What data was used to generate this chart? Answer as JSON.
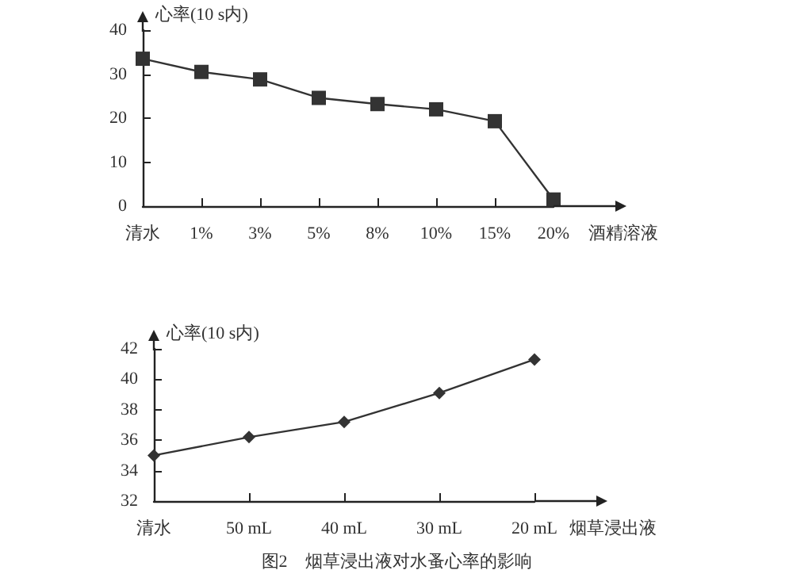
{
  "chart_data": [
    {
      "type": "line",
      "ylabel": "心率(10 s内)",
      "xlabel": "酒精溶液",
      "categories": [
        "清水",
        "1%",
        "3%",
        "5%",
        "8%",
        "10%",
        "15%",
        "20%"
      ],
      "series": [
        {
          "color": "#333333",
          "values": [
            33.5,
            30.5,
            28.8,
            24.6,
            23.2,
            22,
            19.3,
            1.5
          ]
        }
      ],
      "ylim": [
        0,
        40
      ],
      "yticks": [
        0,
        10,
        20,
        30,
        40
      ],
      "grid": false,
      "marker": "square",
      "line_style": "solid"
    },
    {
      "type": "line",
      "ylabel": "心率(10 s内)",
      "xlabel": "烟草浸出液",
      "categories": [
        "清水",
        "50 mL",
        "40 mL",
        "30 mL",
        "20 mL"
      ],
      "series": [
        {
          "color": "#333333",
          "values": [
            35,
            36.2,
            37.2,
            39.1,
            41.3
          ]
        }
      ],
      "ylim": [
        32,
        42
      ],
      "yticks": [
        32,
        34,
        36,
        38,
        40,
        42
      ],
      "grid": false,
      "marker": "diamond",
      "line_style": "solid",
      "annotations": [
        "图2　烟草浸出液对水蚤心率的影响"
      ]
    }
  ]
}
